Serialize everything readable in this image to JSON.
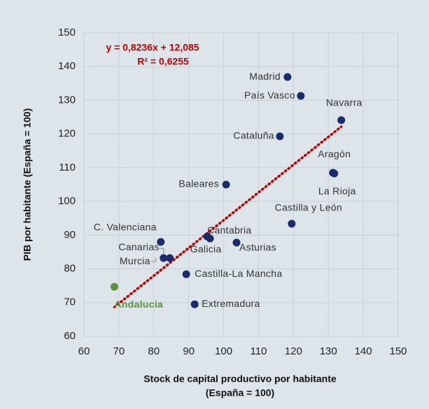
{
  "chart_data": {
    "type": "scatter",
    "x_label": "Stock de capital productivo por habitante",
    "x_label_2": "(España = 100)",
    "y_label": "PIB por habitante (España = 100)",
    "names": [
      "Madrid",
      "País Vasco",
      "Navarra",
      "Cataluña",
      "Aragón",
      "La Rioja",
      "Baleares",
      "Castilla y León",
      "C. Valenciana",
      "Cantabria",
      "Galicia",
      "Asturias",
      "Canarias",
      "Murcia",
      "Castilla-La Mancha",
      "Extremadura",
      "Andalucía"
    ],
    "x": [
      118.3,
      122.1,
      133.7,
      116.1,
      131.3,
      131.7,
      100.7,
      119.5,
      82.0,
      95.3,
      96.1,
      103.7,
      82.8,
      84.6,
      89.3,
      91.7,
      68.7
    ],
    "y": [
      136.9,
      131.3,
      124.1,
      119.3,
      108.5,
      108.3,
      105.0,
      93.4,
      88.0,
      89.6,
      89.0,
      87.8,
      83.2,
      83.2,
      78.4,
      69.5,
      74.7
    ],
    "colors": [
      "#1b2a6b",
      "#1b2a6b",
      "#1b2a6b",
      "#1b2a6b",
      "#1b2a6b",
      "#1b2a6b",
      "#1b2a6b",
      "#1b2a6b",
      "#1b2a6b",
      "#1b2a6b",
      "#1b2a6b",
      "#1b2a6b",
      "#1b2a6b",
      "#1b2a6b",
      "#1b2a6b",
      "#1b2a6b",
      "#5e8f3c"
    ],
    "trendline": {
      "equation": "y = 0,8236x + 12,085",
      "r2": "R² = 0,6255",
      "slope": 0.8236,
      "intercept": 12.085,
      "color": "#c00000"
    },
    "xlim": [
      60,
      150
    ],
    "xticks": [
      60,
      70,
      80,
      90,
      100,
      110,
      120,
      130,
      140,
      150
    ],
    "ylim": [
      60,
      150
    ],
    "yticks": [
      60,
      70,
      80,
      90,
      100,
      110,
      120,
      130,
      140,
      150
    ],
    "grid": true
  }
}
